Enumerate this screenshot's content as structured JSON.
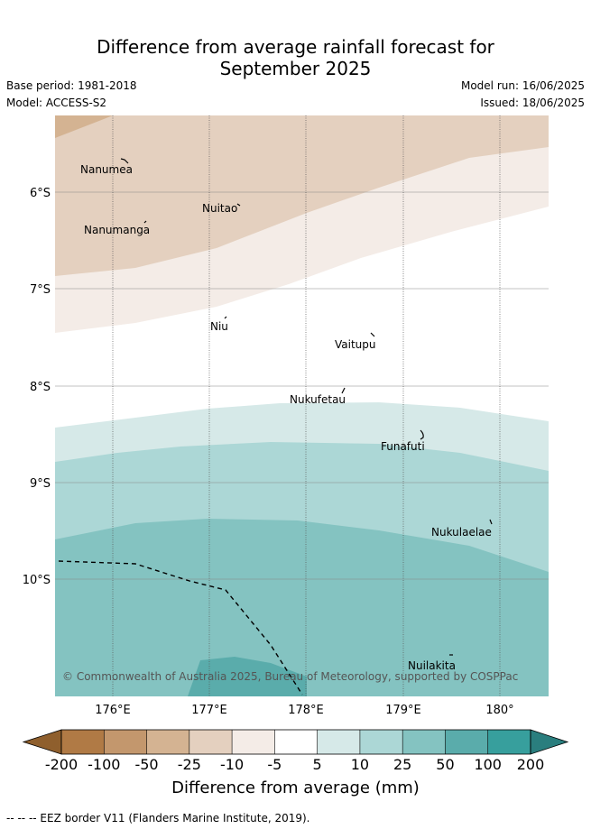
{
  "title_line1": "Difference from average rainfall forecast for",
  "title_line2": "September 2025",
  "meta": {
    "base_period": "Base period: 1981-2018",
    "model": "Model: ACCESS-S2",
    "model_run": "Model run: 16/06/2025",
    "issued": "Issued: 18/06/2025"
  },
  "map": {
    "lat_labels": [
      "6°S",
      "7°S",
      "8°S",
      "9°S",
      "10°S"
    ],
    "lon_labels": [
      "176°E",
      "177°E",
      "178°E",
      "179°E",
      "180°"
    ],
    "places": [
      "Nanumea",
      "Nuitao",
      "Nanumanga",
      "Niu",
      "Vaitupu",
      "Nukufetau",
      "Funafuti",
      "Nukulaelae",
      "Nuilakita"
    ],
    "copyright": "© Commonwealth of Australia 2025, Bureau of Meteorology, supported by COSPPac"
  },
  "colorbar": {
    "labels": [
      "-200",
      "-100",
      "-50",
      "-25",
      "-10",
      "-5",
      "5",
      "10",
      "25",
      "50",
      "100",
      "200"
    ],
    "colors": [
      "#8f5f2d",
      "#b07a45",
      "#c3976d",
      "#d4b392",
      "#e4d0bf",
      "#f4ece7",
      "#ffffff",
      "#d6e9e8",
      "#acd7d6",
      "#84c3c1",
      "#5aacab",
      "#379f9d",
      "#2a7e7e"
    ],
    "title": "Difference from average (mm)"
  },
  "footer": "--  --  -- EEZ border V11 (Flanders Marine Institute, 2019)."
}
